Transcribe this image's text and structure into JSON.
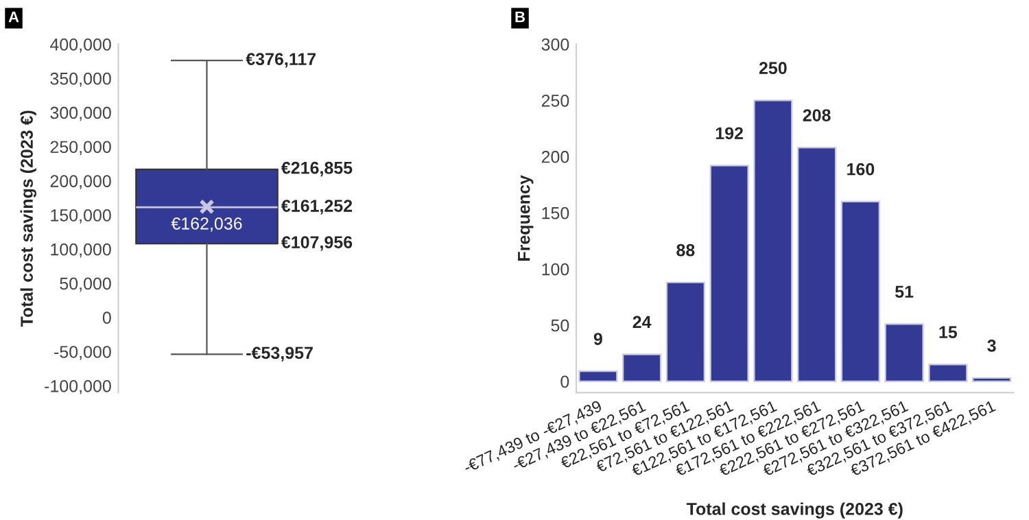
{
  "chart_data": [
    {
      "type": "box",
      "title": "A",
      "ylabel": "Total cost savings (2023 €)",
      "categories": [
        null
      ],
      "boxes": [
        {
          "low": -53957,
          "q1": 107956,
          "median": 161252,
          "q3": 216855,
          "high": 376117,
          "mean": 162036
        }
      ],
      "annotations": [
        "€376,117",
        "-€53,957",
        "€216,855",
        "€161,252",
        "€107,956",
        "€162,036"
      ],
      "color": "#333a96",
      "data_labels": true,
      "ylim": [
        -110000,
        400000
      ],
      "yticks": [
        {
          "value": -100000,
          "label": "-100,000"
        },
        {
          "value": -50000,
          "label": "-50,000"
        },
        0,
        {
          "value": 50000,
          "label": "50,000"
        },
        {
          "value": 100000,
          "label": "100,000"
        },
        {
          "value": 150000,
          "label": "150,000"
        },
        {
          "value": 200000,
          "label": "200,000"
        },
        {
          "value": 250000,
          "label": "250,000"
        },
        {
          "value": 300000,
          "label": "300,000"
        },
        {
          "value": 350000,
          "label": "350,000"
        },
        {
          "value": 400000,
          "label": "400,000"
        }
      ],
      "grid": false,
      "legend": false
    },
    {
      "type": "bar",
      "title": "B",
      "xlabel": "Total cost savings (2023 €)",
      "ylabel": "Frequency",
      "categories": [
        "-€77,439 to -€27,439",
        "-€27,439 to €22,561",
        "€22,561 to €72,561",
        "€72,561 to €122,561",
        "€122,561 to €172,561",
        "€172,561 to €222,561",
        "€222,561 to €272,561",
        "€272,561 to €322,561",
        "€322,561 to €372,561",
        "€372,561 to €422,561"
      ],
      "values": [
        9,
        24,
        88,
        192,
        250,
        208,
        160,
        51,
        15,
        3
      ],
      "color": "#333a96",
      "data_labels": true,
      "ylim": [
        -10,
        300
      ],
      "yticks": [
        0,
        50,
        100,
        150,
        200,
        250,
        300
      ],
      "grid": false,
      "legend": false
    }
  ]
}
